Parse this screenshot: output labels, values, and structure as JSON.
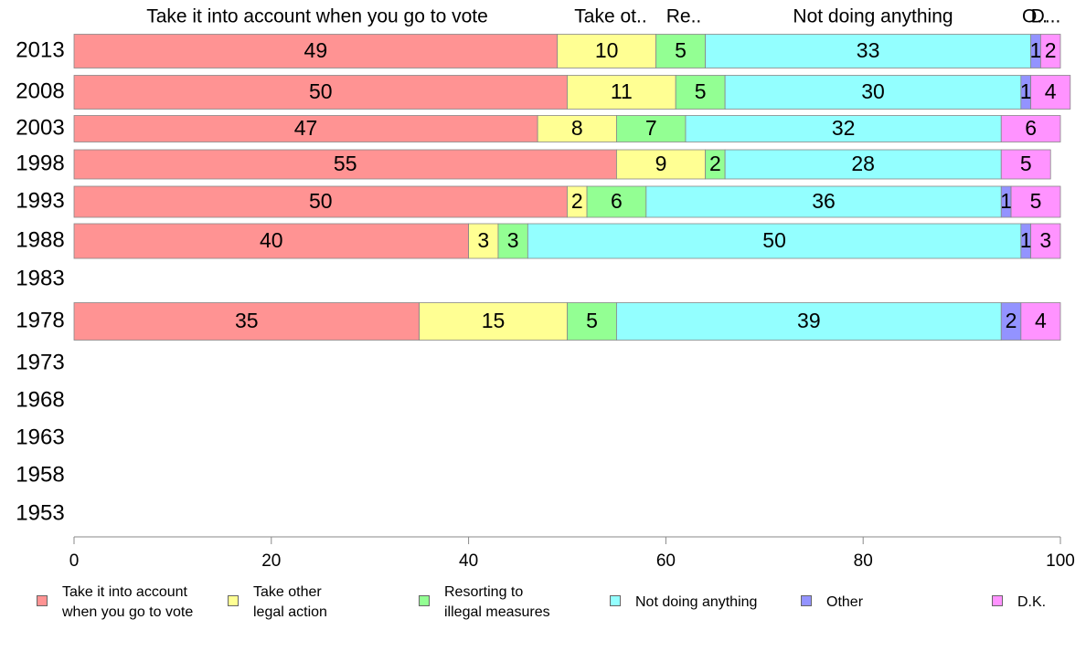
{
  "chart_data": {
    "type": "bar",
    "orientation": "horizontal",
    "stacked": true,
    "categories": [
      "2013",
      "2008",
      "2003",
      "1998",
      "1993",
      "1988",
      "1983",
      "1978",
      "1973",
      "1968",
      "1963",
      "1958",
      "1953"
    ],
    "series": [
      {
        "name": "Take it into account when you go to vote",
        "color": "#ff9393",
        "values": [
          49,
          50,
          47,
          55,
          50,
          40,
          null,
          35,
          null,
          null,
          null,
          null,
          null
        ]
      },
      {
        "name": "Take other legal action",
        "color": "#ffff93",
        "values": [
          10,
          11,
          8,
          9,
          2,
          3,
          null,
          15,
          null,
          null,
          null,
          null,
          null
        ]
      },
      {
        "name": "Resorting to illegal measures",
        "color": "#93ff93",
        "values": [
          5,
          5,
          7,
          2,
          6,
          3,
          null,
          5,
          null,
          null,
          null,
          null,
          null
        ]
      },
      {
        "name": "Not doing anything",
        "color": "#93ffff",
        "values": [
          33,
          30,
          32,
          28,
          36,
          50,
          null,
          39,
          null,
          null,
          null,
          null,
          null
        ]
      },
      {
        "name": "Other",
        "color": "#9393ff",
        "values": [
          1,
          1,
          0,
          0,
          1,
          1,
          null,
          2,
          null,
          null,
          null,
          null,
          null
        ]
      },
      {
        "name": "D.K.",
        "color": "#ff93ff",
        "values": [
          2,
          4,
          6,
          5,
          5,
          3,
          null,
          4,
          null,
          null,
          null,
          null,
          null
        ]
      }
    ],
    "top_labels": [
      "Take it into account when you go to vote",
      "Take ot..",
      "Re..",
      "Not doing anything",
      "O..",
      "D..."
    ],
    "xlim": [
      0,
      100
    ],
    "xticks": [
      "0",
      "20",
      "40",
      "60",
      "80",
      "100"
    ],
    "legend_labels": [
      "Take it into account\nwhen you go to vote",
      "Take other\nlegal action",
      "Resorting to\nillegal measures",
      "Not doing anything",
      "Other",
      "D.K."
    ],
    "legend_position": "bottom",
    "grid": false
  }
}
